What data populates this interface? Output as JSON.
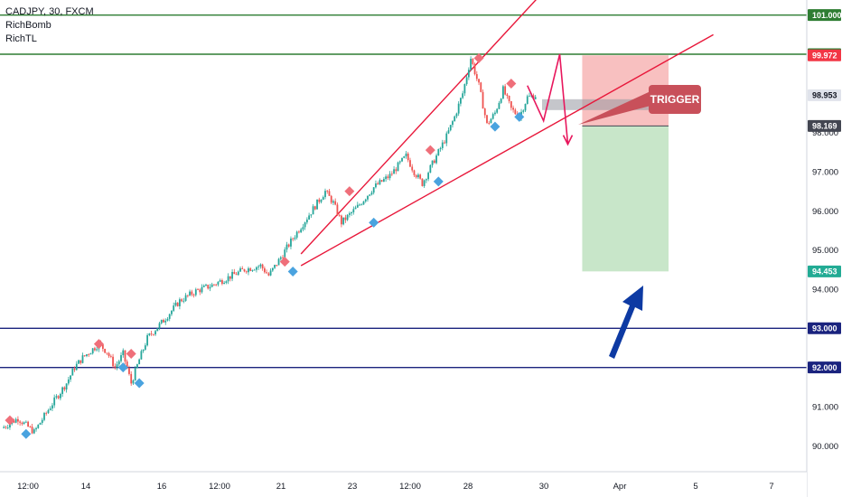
{
  "legend": {
    "symbol": "CADJPY, 30, FXCM",
    "indicator1": "RichBomb",
    "indicator2": "RichTL"
  },
  "colors": {
    "accent_green": "#2e7d32",
    "accent_navy": "#1a237e",
    "trend_red": "#e8173a",
    "buy_diamond": "#4aa3df",
    "sell_diamond": "#ef6f7a",
    "candle_up": "#26a69a",
    "candle_down": "#ef5350",
    "stop_zone": "#f7b5b5",
    "target_zone": "#c8e6c9",
    "trigger_box": "#c8505a"
  },
  "annotation": {
    "trigger_label": "TRIGGER"
  },
  "chart_data": {
    "type": "candlestick",
    "title": "CADJPY, 30, FXCM",
    "x_tick_labels": [
      "12:00",
      "14",
      "16",
      "12:00",
      "21",
      "23",
      "12:00",
      "28",
      "30",
      "Apr",
      "5",
      "7"
    ],
    "y_tick_labels": [
      "90.000",
      "91.000",
      "94.000",
      "95.000",
      "96.000",
      "97.000",
      "98.000"
    ],
    "ylim": [
      89.5,
      101.4
    ],
    "price_series": [
      {
        "t": 0,
        "v": 90.45
      },
      {
        "t": 2,
        "v": 90.7
      },
      {
        "t": 4,
        "v": 90.35
      },
      {
        "t": 6,
        "v": 91.0
      },
      {
        "t": 8,
        "v": 91.6
      },
      {
        "t": 9,
        "v": 92.0
      },
      {
        "t": 10,
        "v": 92.25
      },
      {
        "t": 12,
        "v": 92.6
      },
      {
        "t": 13,
        "v": 92.4
      },
      {
        "t": 14,
        "v": 92.0
      },
      {
        "t": 15,
        "v": 92.35
      },
      {
        "t": 16,
        "v": 91.6
      },
      {
        "t": 17,
        "v": 92.2
      },
      {
        "t": 18,
        "v": 92.75
      },
      {
        "t": 20,
        "v": 93.2
      },
      {
        "t": 22,
        "v": 93.7
      },
      {
        "t": 24,
        "v": 93.95
      },
      {
        "t": 26,
        "v": 94.1
      },
      {
        "t": 28,
        "v": 94.3
      },
      {
        "t": 30,
        "v": 94.5
      },
      {
        "t": 32,
        "v": 94.6
      },
      {
        "t": 33,
        "v": 94.35
      },
      {
        "t": 34,
        "v": 94.65
      },
      {
        "t": 36,
        "v": 95.3
      },
      {
        "t": 38,
        "v": 95.9
      },
      {
        "t": 40,
        "v": 96.5
      },
      {
        "t": 41,
        "v": 96.2
      },
      {
        "t": 42,
        "v": 95.7
      },
      {
        "t": 44,
        "v": 96.1
      },
      {
        "t": 46,
        "v": 96.6
      },
      {
        "t": 48,
        "v": 96.9
      },
      {
        "t": 50,
        "v": 97.4
      },
      {
        "t": 51,
        "v": 97.0
      },
      {
        "t": 52,
        "v": 96.7
      },
      {
        "t": 53,
        "v": 97.1
      },
      {
        "t": 55,
        "v": 97.9
      },
      {
        "t": 56,
        "v": 98.4
      },
      {
        "t": 57,
        "v": 99.0
      },
      {
        "t": 58,
        "v": 99.9
      },
      {
        "t": 59,
        "v": 99.2
      },
      {
        "t": 60,
        "v": 98.2
      },
      {
        "t": 61,
        "v": 98.5
      },
      {
        "t": 62,
        "v": 99.1
      },
      {
        "t": 63,
        "v": 98.6
      },
      {
        "t": 64,
        "v": 98.4
      },
      {
        "t": 65,
        "v": 98.9
      },
      {
        "t": 66,
        "v": 98.95
      }
    ],
    "sell_signals": [
      {
        "t": 1,
        "v": 90.65
      },
      {
        "t": 12,
        "v": 92.6
      },
      {
        "t": 16,
        "v": 92.35
      },
      {
        "t": 35,
        "v": 94.7
      },
      {
        "t": 43,
        "v": 96.5
      },
      {
        "t": 53,
        "v": 97.55
      },
      {
        "t": 59,
        "v": 99.9
      },
      {
        "t": 63,
        "v": 99.25
      }
    ],
    "buy_signals": [
      {
        "t": 3,
        "v": 90.3
      },
      {
        "t": 15,
        "v": 92.0
      },
      {
        "t": 17,
        "v": 91.6
      },
      {
        "t": 36,
        "v": 94.45
      },
      {
        "t": 46,
        "v": 95.7
      },
      {
        "t": 54,
        "v": 96.75
      },
      {
        "t": 61,
        "v": 98.15
      },
      {
        "t": 64,
        "v": 98.4
      }
    ],
    "horizontal_levels": [
      {
        "value": 101.0,
        "label": "101.000",
        "color": "#2e7d32"
      },
      {
        "value": 100.0,
        "label": "100.000",
        "color": "#2e7d32"
      },
      {
        "value": 93.0,
        "label": "93.000",
        "color": "#1a237e"
      },
      {
        "value": 92.0,
        "label": "92.000",
        "color": "#1a237e"
      }
    ],
    "price_tags": [
      {
        "value": 99.972,
        "label": "99.972",
        "bg": "#f23645",
        "fg": "#ffffff"
      },
      {
        "value": 98.953,
        "label": "98.953",
        "bg": "#e0e3eb",
        "fg": "#131722"
      },
      {
        "value": 98.169,
        "label": "98.169",
        "bg": "#434651",
        "fg": "#ffffff"
      },
      {
        "value": 94.453,
        "label": "94.453",
        "bg": "#22ab94",
        "fg": "#ffffff"
      }
    ],
    "trendlines": [
      {
        "from": {
          "t": 37,
          "v": 94.9
        },
        "to": {
          "t": 67,
          "v": 101.6
        }
      },
      {
        "from": {
          "t": 37,
          "v": 94.6
        },
        "to": {
          "t": 88,
          "v": 100.5
        }
      }
    ],
    "risk_reward": {
      "t_start": 71,
      "t_end": 80,
      "stop": 99.972,
      "entry": 98.169,
      "target": 94.453
    },
    "projected_path": [
      {
        "t": 65,
        "v": 99.2
      },
      {
        "t": 67,
        "v": 98.3
      },
      {
        "t": 69,
        "v": 100.0
      },
      {
        "t": 70,
        "v": 97.7
      }
    ],
    "grid": false
  }
}
